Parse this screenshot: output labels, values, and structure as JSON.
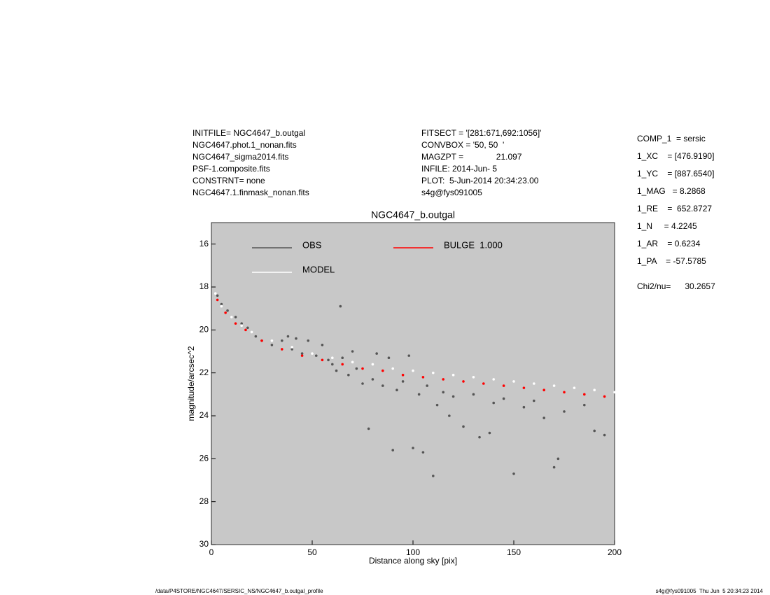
{
  "header": {
    "left": [
      "INITFILE= NGC4647_b.outgal",
      "NGC4647.phot.1_nonan.fits",
      "NGC4647_sigma2014.fits",
      "PSF-1.composite.fits",
      "CONSTRNT= none",
      "NGC4647.1.finmask_nonan.fits"
    ],
    "middle": [
      "FITSECT = '[281:671,692:1056]'",
      "CONVBOX = '50, 50  '",
      "MAGZPT =              21.097",
      "INFILE: 2014-Jun- 5",
      "PLOT:  5-Jun-2014 20:34:23.00",
      "s4g@fys091005"
    ],
    "params": [
      "COMP_1  = sersic",
      "1_XC    = [476.9190]",
      "1_YC    = [887.6540]",
      "1_MAG   = 8.2868",
      "1_RE    =  652.8727",
      "1_N     = 4.2245",
      "1_AR    = 0.6234",
      "1_PA    = -57.5785"
    ],
    "chi": "Chi2/nu=      30.2657"
  },
  "footer": {
    "left": "/data/P4STORE/NGC4647/SERSIC_NS/NGC4647_b.outgal_profile",
    "right": "s4g@fys091005  Thu Jun  5 20:34:23 2014"
  },
  "chart_data": {
    "type": "scatter",
    "title": "NGC4647_b.outgal",
    "xlabel": "Distance along sky [pix]",
    "ylabel": "magnitude/arcsec^2",
    "xlim": [
      0,
      200
    ],
    "ylim": [
      30,
      15
    ],
    "xticks": [
      0,
      50,
      100,
      150,
      200
    ],
    "yticks": [
      16,
      18,
      20,
      22,
      24,
      26,
      28,
      30
    ],
    "series": [
      {
        "name": "OBS",
        "color": "#555555",
        "x": [
          3,
          5,
          8,
          12,
          15,
          18,
          22,
          25,
          30,
          35,
          38,
          40,
          42,
          45,
          48,
          52,
          55,
          58,
          60,
          62,
          64,
          65,
          68,
          70,
          72,
          75,
          78,
          80,
          82,
          85,
          88,
          90,
          92,
          95,
          98,
          100,
          103,
          105,
          107,
          110,
          112,
          115,
          118,
          120,
          125,
          130,
          133,
          138,
          140,
          145,
          150,
          155,
          160,
          165,
          170,
          172,
          175,
          185,
          190,
          195
        ],
        "values": [
          18.4,
          18.8,
          19.1,
          19.4,
          19.7,
          19.9,
          20.3,
          20.5,
          20.7,
          20.5,
          20.3,
          20.9,
          20.4,
          21.1,
          20.5,
          21.2,
          20.7,
          21.4,
          21.6,
          21.9,
          18.9,
          21.3,
          22.1,
          21.0,
          21.8,
          22.5,
          24.6,
          22.3,
          21.1,
          22.6,
          21.3,
          25.6,
          22.8,
          22.4,
          21.2,
          25.5,
          23.0,
          25.7,
          22.6,
          26.8,
          23.5,
          22.9,
          24.0,
          23.1,
          24.5,
          23.0,
          25.0,
          24.8,
          23.4,
          23.2,
          26.7,
          23.6,
          23.3,
          24.1,
          26.4,
          26.0,
          23.8,
          23.5,
          24.7,
          24.9
        ]
      },
      {
        "name": "MODEL",
        "color": "#ffffff",
        "x": [
          2,
          5,
          10,
          15,
          20,
          30,
          40,
          50,
          60,
          70,
          80,
          90,
          100,
          110,
          120,
          130,
          140,
          150,
          160,
          170,
          180,
          190,
          200
        ],
        "values": [
          18.3,
          18.9,
          19.4,
          19.8,
          20.1,
          20.5,
          20.8,
          21.1,
          21.3,
          21.5,
          21.6,
          21.8,
          21.9,
          22.0,
          22.1,
          22.2,
          22.3,
          22.4,
          22.5,
          22.6,
          22.7,
          22.8,
          22.9
        ]
      },
      {
        "name": "BULGE  1.000",
        "color": "#ff0000",
        "x": [
          3,
          7,
          12,
          17,
          25,
          35,
          45,
          55,
          65,
          75,
          85,
          95,
          105,
          115,
          125,
          135,
          145,
          155,
          165,
          175,
          185,
          195
        ],
        "values": [
          18.6,
          19.2,
          19.7,
          20.0,
          20.5,
          20.9,
          21.2,
          21.4,
          21.6,
          21.8,
          21.9,
          22.1,
          22.2,
          22.3,
          22.4,
          22.5,
          22.6,
          22.7,
          22.8,
          22.9,
          23.0,
          23.1
        ]
      }
    ]
  }
}
